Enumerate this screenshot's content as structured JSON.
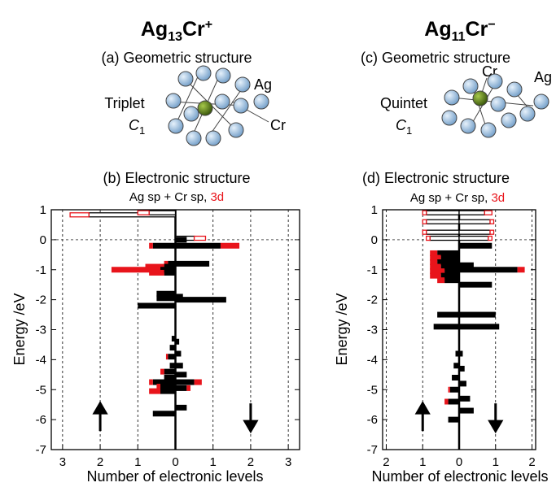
{
  "chart_data": [
    {
      "type": "level",
      "formula": [
        "Ag",
        "13",
        "Cr",
        "+"
      ],
      "structure_title": "(a) Geometric structure",
      "state": "Triplet",
      "symmetry": [
        "C",
        "1"
      ],
      "atom_labels": [
        "Ag",
        "Cr"
      ],
      "subtitle": "(b) Electronic structure",
      "legend": [
        "Ag sp + Cr sp, ",
        "3d"
      ],
      "colors": [
        "#000000",
        "#e8141b"
      ],
      "ylabel": "Energy /eV",
      "xlabel": "Number of electronic levels",
      "xlim": [
        -3.3,
        3.3
      ],
      "xticks": [
        {
          "value": -3,
          "label": "3"
        },
        {
          "value": -2,
          "label": "2"
        },
        {
          "value": -1,
          "label": "1"
        },
        0,
        1,
        2,
        3
      ],
      "ylim": [
        -7,
        1
      ],
      "yticks": [
        1,
        0,
        -1,
        -2,
        -3,
        -4,
        -5,
        -6,
        -7
      ],
      "grid": true,
      "zero_line": true,
      "up_empty": [
        {
          "energy": 0.83,
          "sp": 2.3,
          "d": 0.5
        },
        {
          "energy": 0.9,
          "sp": 0.7,
          "d": 0.3
        }
      ],
      "down_empty": [
        {
          "energy": 0.05,
          "sp": 0.5,
          "d": 0.3
        }
      ],
      "up": [
        {
          "energy": -0.2,
          "sp": 0.6,
          "d": 0.1
        },
        {
          "energy": -0.8,
          "sp": 0.2,
          "d": 0.1
        },
        {
          "energy": -0.9,
          "sp": 0.3,
          "d": 0.5
        },
        {
          "energy": -1.0,
          "sp": 0.4,
          "d": 1.3
        },
        {
          "energy": -1.1,
          "sp": 0.3,
          "d": 0.4
        },
        {
          "energy": -1.8,
          "sp": 0.5,
          "d": 0
        },
        {
          "energy": -1.95,
          "sp": 0.5,
          "d": 0
        },
        {
          "energy": -2.2,
          "sp": 1.0,
          "d": 0
        },
        {
          "energy": -3.3,
          "sp": 0.1,
          "d": 0
        },
        {
          "energy": -3.6,
          "sp": 0.15,
          "d": 0
        },
        {
          "energy": -3.9,
          "sp": 0.2,
          "d": 0.05
        },
        {
          "energy": -4.2,
          "sp": 0.15,
          "d": 0
        },
        {
          "energy": -4.4,
          "sp": 0.3,
          "d": 0.1
        },
        {
          "energy": -4.6,
          "sp": 0.3,
          "d": 0
        },
        {
          "energy": -4.75,
          "sp": 0.6,
          "d": 0.1
        },
        {
          "energy": -4.9,
          "sp": 0.4,
          "d": 0.1
        },
        {
          "energy": -5.05,
          "sp": 0.4,
          "d": 0.3
        },
        {
          "energy": -5.8,
          "sp": 0.6,
          "d": 0
        }
      ],
      "down": [
        {
          "energy": 0.0,
          "sp": 0.3,
          "d": 0
        },
        {
          "energy": -0.2,
          "sp": 1.2,
          "d": 0.5
        },
        {
          "energy": -0.8,
          "sp": 0.9,
          "d": 0
        },
        {
          "energy": -1.9,
          "sp": 0.2,
          "d": 0
        },
        {
          "energy": -2.0,
          "sp": 1.35,
          "d": 0
        },
        {
          "energy": -3.4,
          "sp": 0.1,
          "d": 0
        },
        {
          "energy": -3.8,
          "sp": 0.15,
          "d": 0
        },
        {
          "energy": -4.2,
          "sp": 0.2,
          "d": 0
        },
        {
          "energy": -4.5,
          "sp": 0.3,
          "d": 0
        },
        {
          "energy": -4.75,
          "sp": 0.5,
          "d": 0.2
        },
        {
          "energy": -4.95,
          "sp": 0.3,
          "d": 0.1
        },
        {
          "energy": -5.6,
          "sp": 0.3,
          "d": 0
        }
      ]
    },
    {
      "type": "level",
      "formula": [
        "Ag",
        "11",
        "Cr",
        "−"
      ],
      "structure_title": "(c) Geometric structure",
      "state": "Quintet",
      "symmetry": [
        "C",
        "1"
      ],
      "atom_labels": [
        "Ag",
        "Cr"
      ],
      "subtitle": "(d) Electronic structure",
      "legend": [
        "Ag sp + Cr sp, ",
        "3d"
      ],
      "colors": [
        "#000000",
        "#e8141b"
      ],
      "ylabel": "Energy /eV",
      "xlabel": "Number of electronic levels",
      "xlim": [
        -2.1,
        2.1
      ],
      "xticks": [
        {
          "value": -2,
          "label": "2"
        },
        {
          "value": -1,
          "label": "1"
        },
        0,
        1,
        2
      ],
      "ylim": [
        -7,
        1
      ],
      "yticks": [
        1,
        0,
        -1,
        -2,
        -3,
        -4,
        -5,
        -6,
        -7
      ],
      "grid": true,
      "zero_line": true,
      "up_empty": [
        {
          "energy": 0.9,
          "sp": 0.9,
          "d": 0.1
        },
        {
          "energy": 0.6,
          "sp": 0.9,
          "d": 0.1
        },
        {
          "energy": 0.25,
          "sp": 0.9,
          "d": 0.1
        },
        {
          "energy": 0.05,
          "sp": 0.8,
          "d": 0.1
        }
      ],
      "down_empty": [
        {
          "energy": 0.9,
          "sp": 0.7,
          "d": 0.2
        },
        {
          "energy": 0.6,
          "sp": 0.85,
          "d": 0.1
        },
        {
          "energy": 0.25,
          "sp": 0.85,
          "d": 0.1
        },
        {
          "energy": 0.05,
          "sp": 0.8,
          "d": 0.1
        }
      ],
      "up": [
        {
          "energy": -0.45,
          "sp": 0.6,
          "d": 0.2
        },
        {
          "energy": -0.6,
          "sp": 0.5,
          "d": 0.3
        },
        {
          "energy": -0.75,
          "sp": 0.6,
          "d": 0.2
        },
        {
          "energy": -0.9,
          "sp": 0.5,
          "d": 0.3
        },
        {
          "energy": -1.05,
          "sp": 0.4,
          "d": 0.4
        },
        {
          "energy": -1.2,
          "sp": 0.5,
          "d": 0.3
        },
        {
          "energy": -1.35,
          "sp": 0.4,
          "d": 0.2
        },
        {
          "energy": -2.5,
          "sp": 0.6,
          "d": 0
        },
        {
          "energy": -2.9,
          "sp": 0.7,
          "d": 0
        },
        {
          "energy": -3.8,
          "sp": 0.1,
          "d": 0
        },
        {
          "energy": -4.2,
          "sp": 0.15,
          "d": 0
        },
        {
          "energy": -4.6,
          "sp": 0.2,
          "d": 0
        },
        {
          "energy": -5.0,
          "sp": 0.25,
          "d": 0.05
        },
        {
          "energy": -5.4,
          "sp": 0.3,
          "d": 0.1
        },
        {
          "energy": -6.0,
          "sp": 0.3,
          "d": 0
        }
      ],
      "down": [
        {
          "energy": -0.2,
          "sp": 0.9,
          "d": 0
        },
        {
          "energy": -0.85,
          "sp": 0.4,
          "d": 0
        },
        {
          "energy": -1.0,
          "sp": 1.6,
          "d": 0.2
        },
        {
          "energy": -1.5,
          "sp": 0.9,
          "d": 0
        },
        {
          "energy": -2.5,
          "sp": 1.0,
          "d": 0
        },
        {
          "energy": -2.9,
          "sp": 1.1,
          "d": 0
        },
        {
          "energy": -3.8,
          "sp": 0.1,
          "d": 0
        },
        {
          "energy": -4.3,
          "sp": 0.15,
          "d": 0
        },
        {
          "energy": -4.8,
          "sp": 0.2,
          "d": 0
        },
        {
          "energy": -5.3,
          "sp": 0.3,
          "d": 0
        },
        {
          "energy": -5.7,
          "sp": 0.4,
          "d": 0
        }
      ]
    }
  ]
}
